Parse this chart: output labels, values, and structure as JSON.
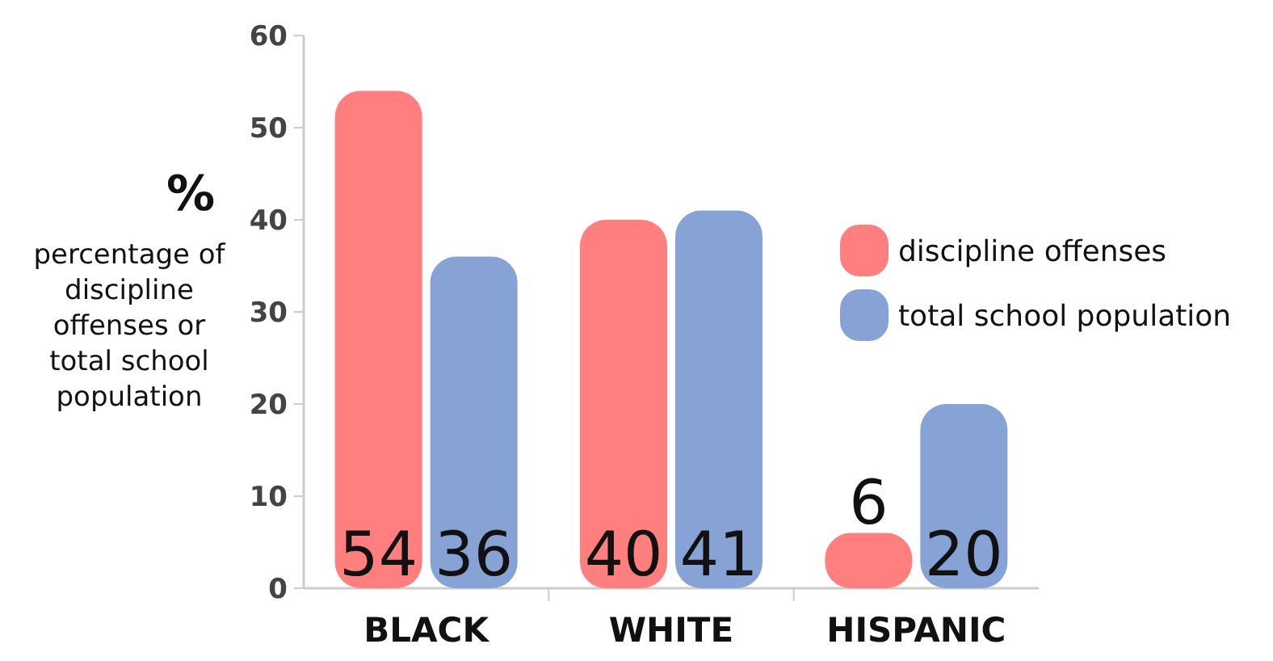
{
  "chart_data": {
    "type": "bar",
    "ylabel": "%",
    "annotations": [
      "percentage of discipline offenses or total school population"
    ],
    "categories": [
      "BLACK",
      "WHITE",
      "HISPANIC"
    ],
    "series": [
      {
        "name": "discipline offenses",
        "color": "#ff7f7f",
        "values": [
          54,
          40,
          6
        ],
        "value_labels": [
          "54",
          "40",
          "6"
        ]
      },
      {
        "name": "total school population",
        "color": "#87a3d6",
        "values": [
          36,
          41,
          20
        ],
        "value_labels": [
          "36",
          "41",
          "20"
        ]
      }
    ],
    "ylim": [
      0,
      60
    ],
    "yticks": [
      0,
      10,
      20,
      30,
      40,
      50,
      60
    ],
    "grid": false,
    "legend": "right"
  }
}
